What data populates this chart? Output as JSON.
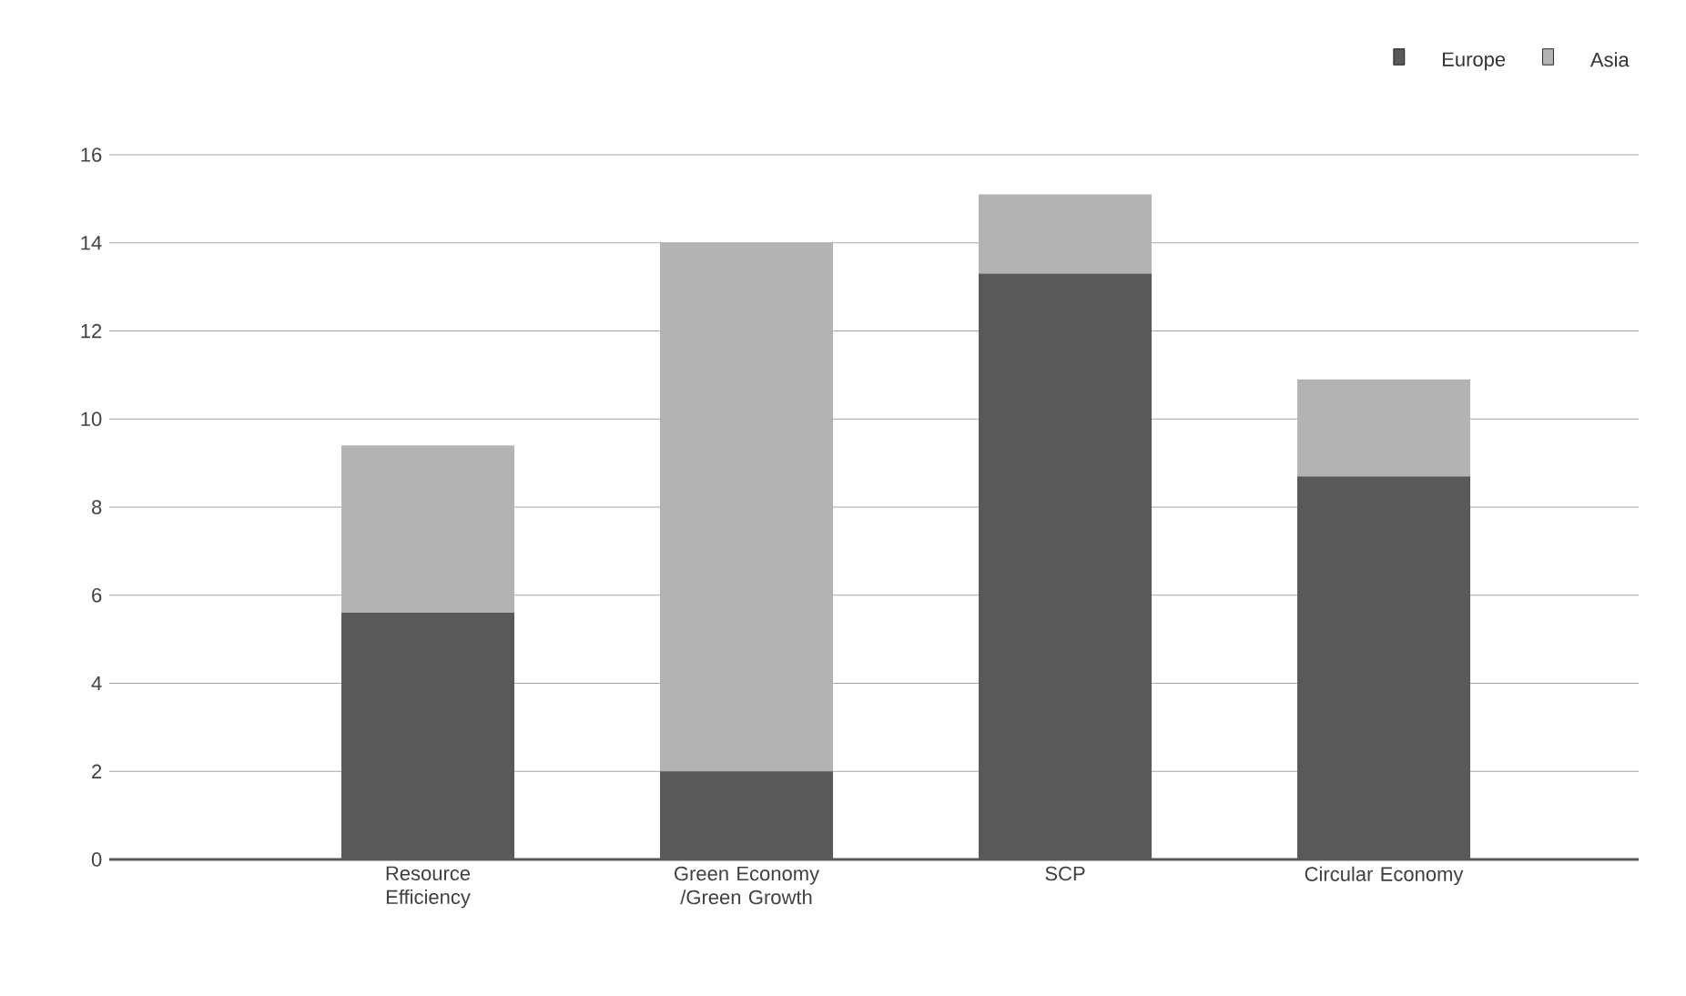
{
  "chart_data": {
    "type": "bar",
    "stacked": true,
    "categories": [
      "Resource Efficiency",
      "Green Economy /Green Growth",
      "SCP",
      "Circular Economy"
    ],
    "series": [
      {
        "name": "Europe",
        "color": "#595959",
        "values": [
          5.6,
          2.0,
          13.3,
          8.7
        ]
      },
      {
        "name": "Asia",
        "color": "#b3b3b3",
        "values": [
          3.8,
          12.0,
          1.8,
          2.2
        ]
      }
    ],
    "ylim": [
      0,
      16
    ],
    "yticks": [
      0,
      2,
      4,
      6,
      8,
      10,
      12,
      14,
      16
    ],
    "grid": "y",
    "legend": "top right"
  }
}
